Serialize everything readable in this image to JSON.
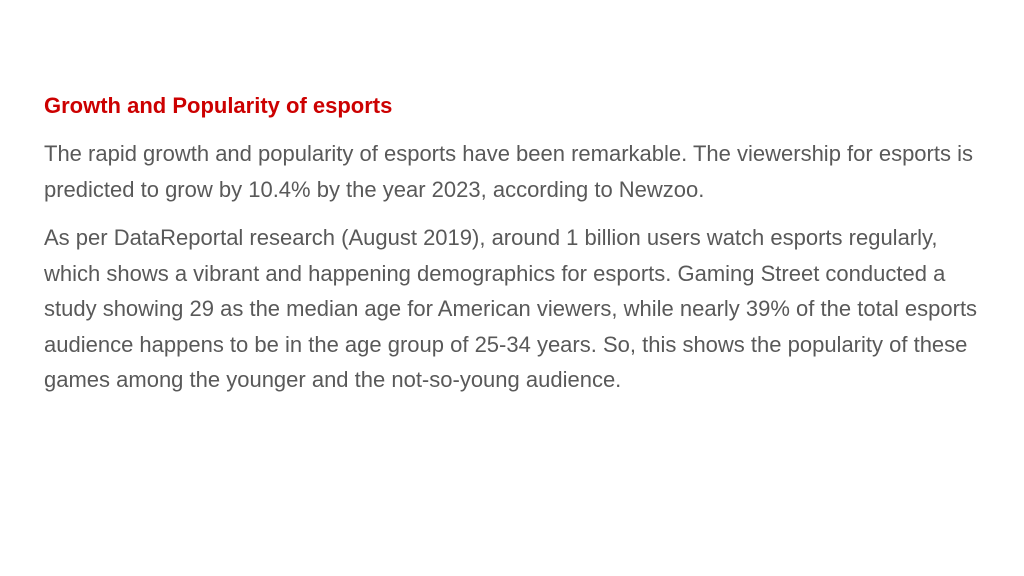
{
  "slide": {
    "title": "Growth and Popularity of esports",
    "paragraphs": [
      "The rapid growth and popularity of esports have been remarkable. The viewership for esports is predicted to grow by 10.4% by the year 2023, according to Newzoo.",
      "As per DataReportal research (August 2019), around 1 billion users watch esports regularly, which shows a vibrant and happening demographics for esports. Gaming Street conducted a study showing 29 as the median age for American viewers, while nearly 39% of the total esports audience happens to be in the age group of 25-34 years. So, this shows the popularity of these games among the younger and the not-so-young audience."
    ],
    "colors": {
      "title": "#cc0000",
      "body_text": "#595959",
      "background": "#ffffff"
    }
  }
}
